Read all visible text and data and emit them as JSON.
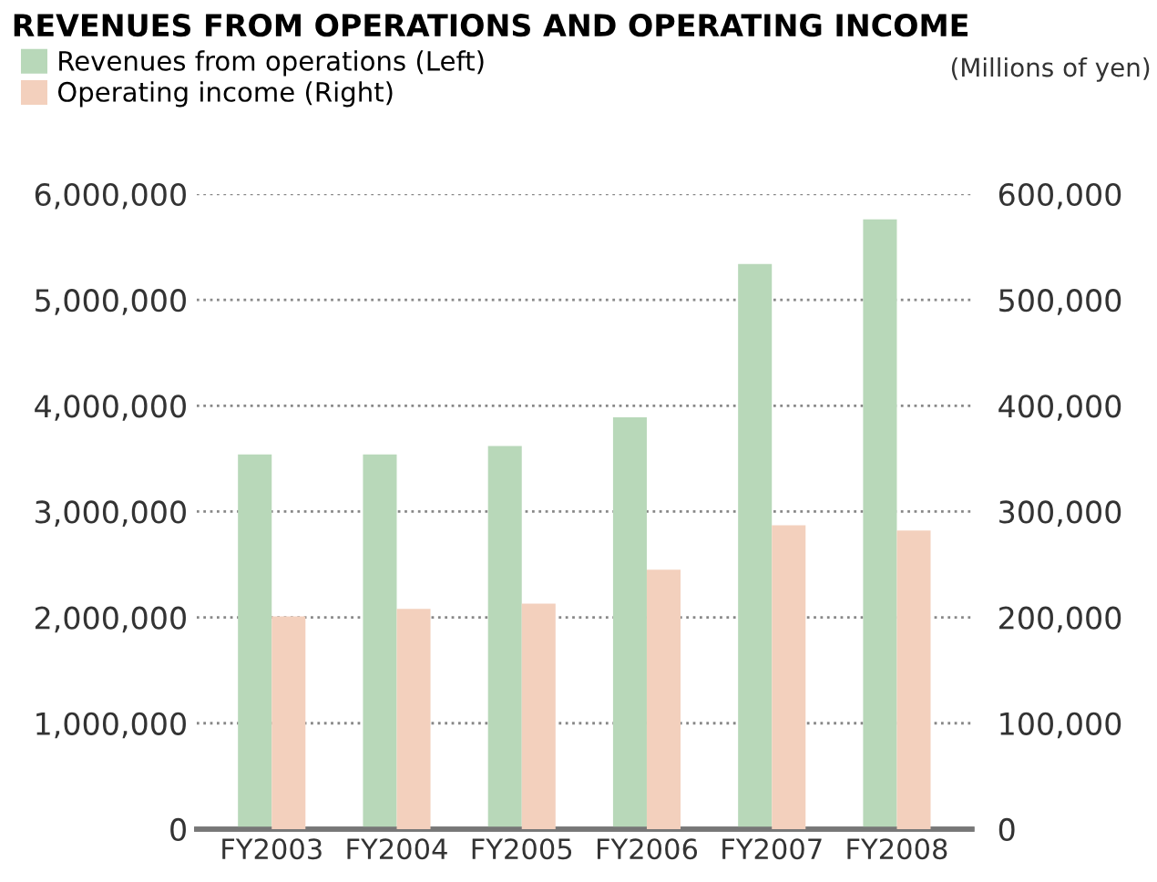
{
  "chart_data": {
    "type": "bar",
    "title": "REVENUES FROM OPERATIONS AND OPERATING INCOME",
    "annotations": [
      "(Millions of yen)"
    ],
    "categories": [
      "FY2003",
      "FY2004",
      "FY2005",
      "FY2006",
      "FY2007",
      "FY2008"
    ],
    "series": [
      {
        "name": "Revenues from operations (Left)",
        "color": "#b8d8b9",
        "values": [
          3540000,
          3540000,
          3620000,
          3890000,
          5340000,
          5760000
        ]
      },
      {
        "name": "Operating income (Right)",
        "color": "#f3d0bd",
        "axis": "y2",
        "values": [
          201000,
          208000,
          213000,
          245000,
          287000,
          282000
        ]
      }
    ],
    "ylim": [
      0,
      6000000
    ],
    "yticks": [
      {
        "value": 0,
        "label": "0"
      },
      {
        "value": 1000000,
        "label": "1,000,000"
      },
      {
        "value": 2000000,
        "label": "2,000,000"
      },
      {
        "value": 3000000,
        "label": "3,000,000"
      },
      {
        "value": 4000000,
        "label": "4,000,000"
      },
      {
        "value": 5000000,
        "label": "5,000,000"
      },
      {
        "value": 6000000,
        "label": "6,000,000"
      }
    ],
    "y2lim": [
      0,
      600000
    ],
    "y2ticks": [
      {
        "value": 0,
        "label": "0"
      },
      {
        "value": 100000,
        "label": "100,000"
      },
      {
        "value": 200000,
        "label": "200,000"
      },
      {
        "value": 300000,
        "label": "300,000"
      },
      {
        "value": 400000,
        "label": "400,000"
      },
      {
        "value": 500000,
        "label": "500,000"
      },
      {
        "value": 600000,
        "label": "600,000"
      }
    ],
    "grid": "y",
    "legend": "top left"
  }
}
